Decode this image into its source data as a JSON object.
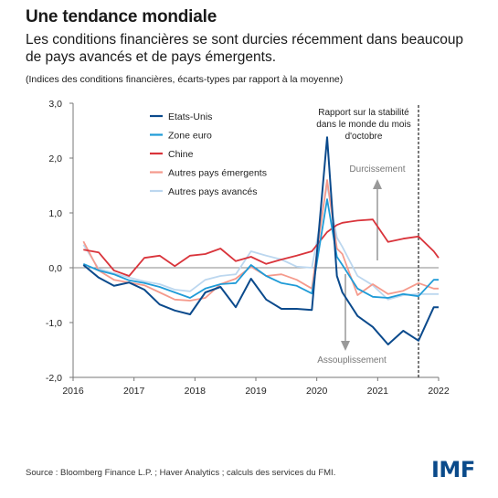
{
  "header": {
    "title": "Une tendance mondiale",
    "subtitle": "Les conditions financières se sont durcies récemment dans beaucoup de pays avancés et de pays émergents.",
    "note": "(Indices des conditions financières, écarts-types par rapport à la moyenne)"
  },
  "footer": {
    "source": "Source : Bloomberg Finance L.P. ; Haver Analytics ; calculs des services du FMI.",
    "logo": "IMF"
  },
  "chart_data": {
    "type": "line",
    "ylim": [
      -2,
      3
    ],
    "xlim": [
      2016,
      2022
    ],
    "yticks": [
      -2,
      -1,
      0,
      1,
      2,
      3
    ],
    "ytick_labels": [
      "-2,0",
      "-1,0",
      "0,0",
      "1,0",
      "2,0",
      "3,0"
    ],
    "xticks": [
      2016,
      2017,
      2018,
      2019,
      2020,
      2021,
      2022
    ],
    "xtick_labels": [
      "2016",
      "2017",
      "2018",
      "2019",
      "2020",
      "2021",
      "2022"
    ],
    "grid": false,
    "legend_position": "top-left",
    "vline": {
      "x": 2021.67,
      "label": "Rapport sur la stabilité dans le monde du mois d'octobre",
      "label_lines": [
        "Rapport sur la stabilité",
        "dans le monde du mois",
        "d'octobre"
      ]
    },
    "annotations": [
      {
        "label": "Durcissement",
        "direction": "up"
      },
      {
        "label": "Assouplissement",
        "direction": "down"
      }
    ],
    "series": [
      {
        "name": "Etats-Unis",
        "color": "#0b4a8c",
        "x": [
          2016.17,
          2016.42,
          2016.67,
          2016.92,
          2017.17,
          2017.42,
          2017.67,
          2017.92,
          2018.17,
          2018.42,
          2018.67,
          2018.92,
          2019.17,
          2019.42,
          2019.67,
          2019.92,
          2020.17,
          2020.33,
          2020.42,
          2020.67,
          2020.92,
          2021.17,
          2021.42,
          2021.67,
          2021.92,
          2022.0
        ],
        "y": [
          0.05,
          -0.18,
          -0.33,
          -0.27,
          -0.4,
          -0.67,
          -0.78,
          -0.85,
          -0.45,
          -0.35,
          -0.72,
          -0.2,
          -0.58,
          -0.75,
          -0.75,
          -0.77,
          2.38,
          -0.15,
          -0.45,
          -0.88,
          -1.08,
          -1.4,
          -1.15,
          -1.33,
          -0.72,
          -0.72
        ]
      },
      {
        "name": "Zone euro",
        "color": "#1f9bd7",
        "x": [
          2016.17,
          2016.42,
          2016.67,
          2016.92,
          2017.17,
          2017.42,
          2017.67,
          2017.92,
          2018.17,
          2018.42,
          2018.67,
          2018.92,
          2019.17,
          2019.42,
          2019.67,
          2019.92,
          2020.17,
          2020.33,
          2020.42,
          2020.67,
          2020.92,
          2021.17,
          2021.42,
          2021.67,
          2021.92,
          2022.0
        ],
        "y": [
          0.07,
          -0.05,
          -0.12,
          -0.23,
          -0.28,
          -0.35,
          -0.45,
          -0.55,
          -0.38,
          -0.3,
          -0.28,
          0.05,
          -0.15,
          -0.28,
          -0.33,
          -0.47,
          1.25,
          0.2,
          0.05,
          -0.38,
          -0.53,
          -0.55,
          -0.48,
          -0.52,
          -0.22,
          -0.22
        ]
      },
      {
        "name": "Chine",
        "color": "#d9343b",
        "x": [
          2016.17,
          2016.42,
          2016.67,
          2016.92,
          2017.17,
          2017.42,
          2017.67,
          2017.92,
          2018.17,
          2018.42,
          2018.67,
          2018.92,
          2019.17,
          2019.42,
          2019.67,
          2019.92,
          2020.17,
          2020.33,
          2020.42,
          2020.67,
          2020.92,
          2021.17,
          2021.42,
          2021.67,
          2021.92,
          2022.0
        ],
        "y": [
          0.33,
          0.28,
          -0.05,
          -0.15,
          0.18,
          0.22,
          0.03,
          0.22,
          0.25,
          0.35,
          0.12,
          0.2,
          0.07,
          0.15,
          0.22,
          0.3,
          0.65,
          0.78,
          0.82,
          0.86,
          0.88,
          0.47,
          0.53,
          0.57,
          0.3,
          0.18
        ]
      },
      {
        "name": "Autres pays émergents",
        "color": "#f59a8c",
        "x": [
          2016.17,
          2016.42,
          2016.67,
          2016.92,
          2017.17,
          2017.42,
          2017.67,
          2017.92,
          2018.17,
          2018.42,
          2018.67,
          2018.92,
          2019.17,
          2019.42,
          2019.67,
          2019.92,
          2020.17,
          2020.33,
          2020.42,
          2020.67,
          2020.92,
          2021.17,
          2021.42,
          2021.67,
          2021.92,
          2022.0
        ],
        "y": [
          0.48,
          -0.05,
          -0.22,
          -0.27,
          -0.32,
          -0.45,
          -0.58,
          -0.6,
          -0.55,
          -0.3,
          -0.2,
          0.02,
          -0.15,
          -0.12,
          -0.22,
          -0.38,
          1.6,
          0.35,
          0.25,
          -0.5,
          -0.3,
          -0.48,
          -0.42,
          -0.28,
          -0.38,
          -0.38
        ]
      },
      {
        "name": "Autres pays avancés",
        "color": "#bcd7ef",
        "x": [
          2016.17,
          2016.42,
          2016.67,
          2016.92,
          2017.17,
          2017.42,
          2017.67,
          2017.92,
          2018.17,
          2018.42,
          2018.67,
          2018.92,
          2019.17,
          2019.42,
          2019.67,
          2019.92,
          2020.17,
          2020.33,
          2020.42,
          2020.67,
          2020.92,
          2021.17,
          2021.42,
          2021.67,
          2021.92,
          2022.0
        ],
        "y": [
          0.42,
          -0.02,
          -0.1,
          -0.18,
          -0.25,
          -0.3,
          -0.4,
          -0.43,
          -0.22,
          -0.15,
          -0.12,
          0.3,
          0.22,
          0.15,
          0.02,
          0.0,
          1.5,
          0.55,
          0.38,
          -0.15,
          -0.32,
          -0.58,
          -0.5,
          -0.48,
          -0.48,
          -0.48
        ]
      }
    ]
  }
}
